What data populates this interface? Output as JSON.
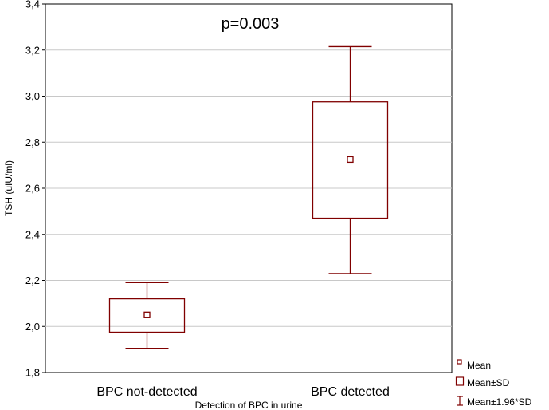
{
  "chart_data": {
    "type": "box",
    "categories": [
      "BPC not-detected",
      "BPC detected"
    ],
    "boxes": [
      {
        "category": "BPC not-detected",
        "mean": 2.05,
        "sd_low": 1.975,
        "sd_high": 2.12,
        "ci_low": 1.905,
        "ci_high": 2.19
      },
      {
        "category": "BPC detected",
        "mean": 2.725,
        "sd_low": 2.47,
        "sd_high": 2.975,
        "ci_low": 2.23,
        "ci_high": 3.215
      }
    ],
    "xlabel": "Detection of BPC in urine",
    "ylabel": "TSH (uIU/ml)",
    "ylim": [
      1.8,
      3.4
    ],
    "yticks": [
      "1,8",
      "2,0",
      "2,2",
      "2,4",
      "2,6",
      "2,8",
      "3,0",
      "3,2",
      "3,4"
    ],
    "annotation": "p=0.003",
    "legend": {
      "placement": "bottom-right",
      "entries": [
        "Mean",
        "Mean±SD",
        "Mean±1.96*SD"
      ]
    },
    "grid": true,
    "color": "#800000"
  }
}
